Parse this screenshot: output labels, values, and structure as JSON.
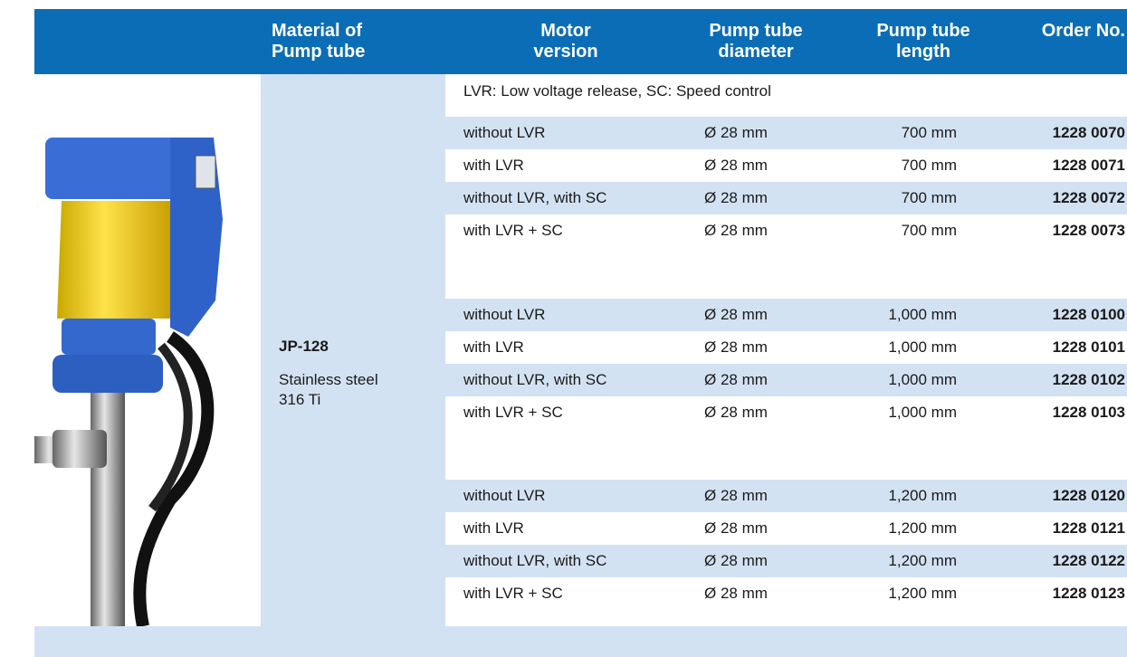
{
  "header": {
    "columns": [
      [
        "Material of",
        "Pump tube"
      ],
      [
        "Motor",
        "version"
      ],
      [
        "Pump tube",
        "diameter"
      ],
      [
        "Pump tube",
        "length"
      ],
      [
        "Order No."
      ]
    ]
  },
  "note": "LVR: Low voltage release, SC: Speed control",
  "material": {
    "name": "JP-128",
    "description": [
      "Stainless steel",
      "316 Ti"
    ]
  },
  "groups": [
    [
      [
        "without LVR",
        "Ø 28 mm",
        "700 mm",
        "1228 0070"
      ],
      [
        "with LVR",
        "Ø 28 mm",
        "700 mm",
        "1228 0071"
      ],
      [
        "without LVR, with SC",
        "Ø 28 mm",
        "700 mm",
        "1228 0072"
      ],
      [
        "with LVR + SC",
        "Ø 28 mm",
        "700 mm",
        "1228 0073"
      ]
    ],
    [
      [
        "without LVR",
        "Ø 28 mm",
        "1,000 mm",
        "1228 0100"
      ],
      [
        "with LVR",
        "Ø 28 mm",
        "1,000 mm",
        "1228 0101"
      ],
      [
        "without LVR, with SC",
        "Ø 28 mm",
        "1,000 mm",
        "1228 0102"
      ],
      [
        "with LVR + SC",
        "Ø 28 mm",
        "1,000 mm",
        "1228 0103"
      ]
    ],
    [
      [
        "without LVR",
        "Ø 28 mm",
        "1,200 mm",
        "1228 0120"
      ],
      [
        "with LVR",
        "Ø 28 mm",
        "1,200 mm",
        "1228 0121"
      ],
      [
        "without LVR, with SC",
        "Ø 28 mm",
        "1,200 mm",
        "1228 0122"
      ],
      [
        "with LVR + SC",
        "Ø 28 mm",
        "1,200 mm",
        "1228 0123"
      ]
    ]
  ]
}
